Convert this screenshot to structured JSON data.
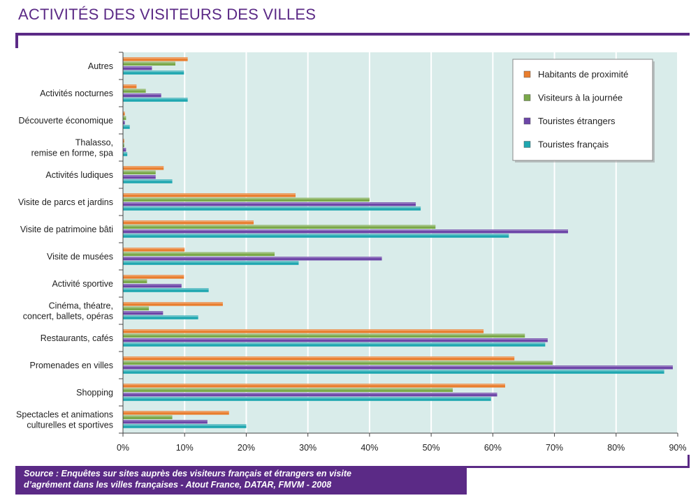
{
  "title": "ACTIVITÉS DES VISITEURS DES VILLES",
  "source_lines": [
    "Source : Enquêtes sur sites auprès des visiteurs français et étrangers en visite",
    "d’agrément dans les villes françaises - Atout France, DATAR, FMVM - 2008"
  ],
  "colors": {
    "accent": "#5b2a86",
    "plot_bg": "#d9ecea",
    "grid": "#ffffff"
  },
  "chart_data": {
    "type": "bar",
    "orientation": "horizontal",
    "categories": [
      "Autres",
      "Activités nocturnes",
      "Découverte économique",
      "Thalasso,\nremise en forme, spa",
      "Activités ludiques",
      "Visite de parcs et jardins",
      "Visite de patrimoine bâti",
      "Visite de musées",
      "Activité sportive",
      "Cinéma, théatre,\nconcert, ballets, opéras",
      "Restaurants, cafés",
      "Promenades en villes",
      "Shopping",
      "Spectacles et animations\nculturelles et sportives"
    ],
    "series": [
      {
        "name": "Habitants de proximité",
        "color": "#e97e2e",
        "values": [
          10.5,
          2.2,
          0.3,
          0.2,
          6.6,
          28.0,
          21.2,
          10.0,
          9.9,
          16.2,
          58.5,
          63.5,
          62.0,
          17.2
        ]
      },
      {
        "name": "Visiteurs à la journée",
        "color": "#7aa84a",
        "values": [
          8.5,
          3.7,
          0.5,
          0.2,
          5.3,
          40.0,
          50.7,
          24.6,
          3.9,
          4.2,
          65.2,
          69.7,
          53.5,
          8.0
        ]
      },
      {
        "name": "Touristes étrangers",
        "color": "#6d46a8",
        "values": [
          4.7,
          6.2,
          0.3,
          0.5,
          5.3,
          47.5,
          72.2,
          42.0,
          9.5,
          6.5,
          68.9,
          89.2,
          60.7,
          13.7
        ]
      },
      {
        "name": "Touristes français",
        "color": "#1fa7b0",
        "values": [
          9.9,
          10.5,
          1.1,
          0.7,
          8.0,
          48.3,
          62.6,
          28.5,
          13.9,
          12.2,
          68.5,
          87.8,
          59.7,
          20.0
        ]
      }
    ],
    "xlim": [
      0,
      90
    ],
    "x_ticks": [
      "0%",
      "10%",
      "20%",
      "30%",
      "40%",
      "50%",
      "60%",
      "70%",
      "80%",
      "90%"
    ],
    "grid": true,
    "legend_position": "top-right",
    "xlabel": "",
    "ylabel": ""
  }
}
